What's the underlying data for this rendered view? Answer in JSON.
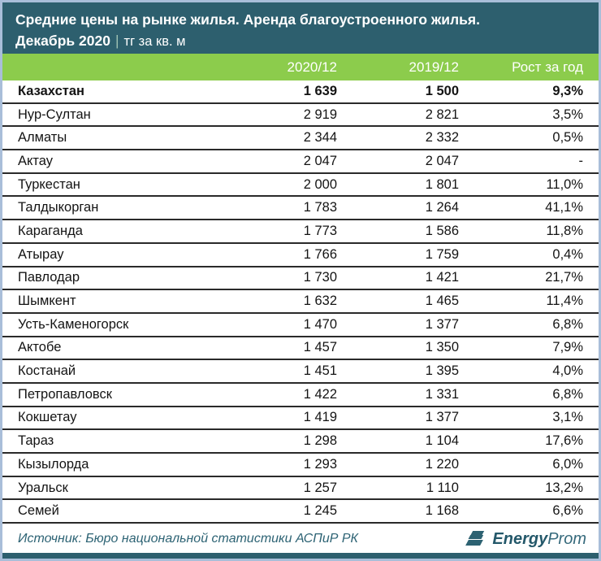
{
  "title": {
    "line1": "Средние цены на рынке жилья. Аренда благоустроенного жилья.",
    "period": "Декабрь 2020",
    "separator": "|",
    "unit": "тг за кв. м"
  },
  "columns": [
    "2020/12",
    "2019/12",
    "Рост за год"
  ],
  "rows": [
    {
      "name": "Казахстан",
      "v2020": "1 639",
      "v2019": "1 500",
      "growth": "9,3%",
      "bold": true
    },
    {
      "name": "Нур-Султан",
      "v2020": "2 919",
      "v2019": "2 821",
      "growth": "3,5%",
      "bold": false
    },
    {
      "name": "Алматы",
      "v2020": "2 344",
      "v2019": "2 332",
      "growth": "0,5%",
      "bold": false
    },
    {
      "name": "Актау",
      "v2020": "2 047",
      "v2019": "2 047",
      "growth": "-",
      "bold": false
    },
    {
      "name": "Туркестан",
      "v2020": "2 000",
      "v2019": "1 801",
      "growth": "11,0%",
      "bold": false
    },
    {
      "name": "Талдыкорган",
      "v2020": "1 783",
      "v2019": "1 264",
      "growth": "41,1%",
      "bold": false
    },
    {
      "name": "Караганда",
      "v2020": "1 773",
      "v2019": "1 586",
      "growth": "11,8%",
      "bold": false
    },
    {
      "name": "Атырау",
      "v2020": "1 766",
      "v2019": "1 759",
      "growth": "0,4%",
      "bold": false
    },
    {
      "name": "Павлодар",
      "v2020": "1 730",
      "v2019": "1 421",
      "growth": "21,7%",
      "bold": false
    },
    {
      "name": "Шымкент",
      "v2020": "1 632",
      "v2019": "1 465",
      "growth": "11,4%",
      "bold": false
    },
    {
      "name": "Усть-Каменогорск",
      "v2020": "1 470",
      "v2019": "1 377",
      "growth": "6,8%",
      "bold": false
    },
    {
      "name": "Актобе",
      "v2020": "1 457",
      "v2019": "1 350",
      "growth": "7,9%",
      "bold": false
    },
    {
      "name": "Костанай",
      "v2020": "1 451",
      "v2019": "1 395",
      "growth": "4,0%",
      "bold": false
    },
    {
      "name": "Петропавловск",
      "v2020": "1 422",
      "v2019": "1 331",
      "growth": "6,8%",
      "bold": false
    },
    {
      "name": "Кокшетау",
      "v2020": "1 419",
      "v2019": "1 377",
      "growth": "3,1%",
      "bold": false
    },
    {
      "name": "Тараз",
      "v2020": "1 298",
      "v2019": "1 104",
      "growth": "17,6%",
      "bold": false
    },
    {
      "name": "Кызылорда",
      "v2020": "1 293",
      "v2019": "1 220",
      "growth": "6,0%",
      "bold": false
    },
    {
      "name": "Уральск",
      "v2020": "1 257",
      "v2019": "1 110",
      "growth": "13,2%",
      "bold": false
    },
    {
      "name": "Семей",
      "v2020": "1 245",
      "v2019": "1 168",
      "growth": "6,6%",
      "bold": false
    }
  ],
  "footer": {
    "source": "Источник: Бюро национальной статистики АСПиР РК",
    "logo_bold": "Energy",
    "logo_rest": "Prom"
  },
  "colors": {
    "header_bg": "#2d5f6e",
    "green_accent": "#8ccc4c",
    "frame_border": "#a9bed9",
    "row_line": "#2a2a2a",
    "teal_text": "#2d6374"
  },
  "chart_data": {
    "type": "table",
    "title": "Средние цены на рынке жилья. Аренда благоустроенного жилья. Декабрь 2020, тг за кв. м",
    "columns": [
      "2020/12",
      "2019/12",
      "Рост за год"
    ],
    "categories": [
      "Казахстан",
      "Нур-Султан",
      "Алматы",
      "Актау",
      "Туркестан",
      "Талдыкорган",
      "Караганда",
      "Атырау",
      "Павлодар",
      "Шымкент",
      "Усть-Каменогорск",
      "Актобе",
      "Костанай",
      "Петропавловск",
      "Кокшетау",
      "Тараз",
      "Кызылорда",
      "Уральск",
      "Семей"
    ],
    "series": [
      {
        "name": "2020/12",
        "values": [
          1639,
          2919,
          2344,
          2047,
          2000,
          1783,
          1773,
          1766,
          1730,
          1632,
          1470,
          1457,
          1451,
          1422,
          1419,
          1298,
          1293,
          1257,
          1245
        ]
      },
      {
        "name": "2019/12",
        "values": [
          1500,
          2821,
          2332,
          2047,
          1801,
          1264,
          1586,
          1759,
          1421,
          1465,
          1377,
          1350,
          1395,
          1331,
          1377,
          1104,
          1220,
          1110,
          1168
        ]
      },
      {
        "name": "Рост за год, %",
        "values": [
          9.3,
          3.5,
          0.5,
          null,
          11.0,
          41.1,
          11.8,
          0.4,
          21.7,
          11.4,
          6.8,
          7.9,
          4.0,
          6.8,
          3.1,
          17.6,
          6.0,
          13.2,
          6.6
        ]
      }
    ]
  }
}
